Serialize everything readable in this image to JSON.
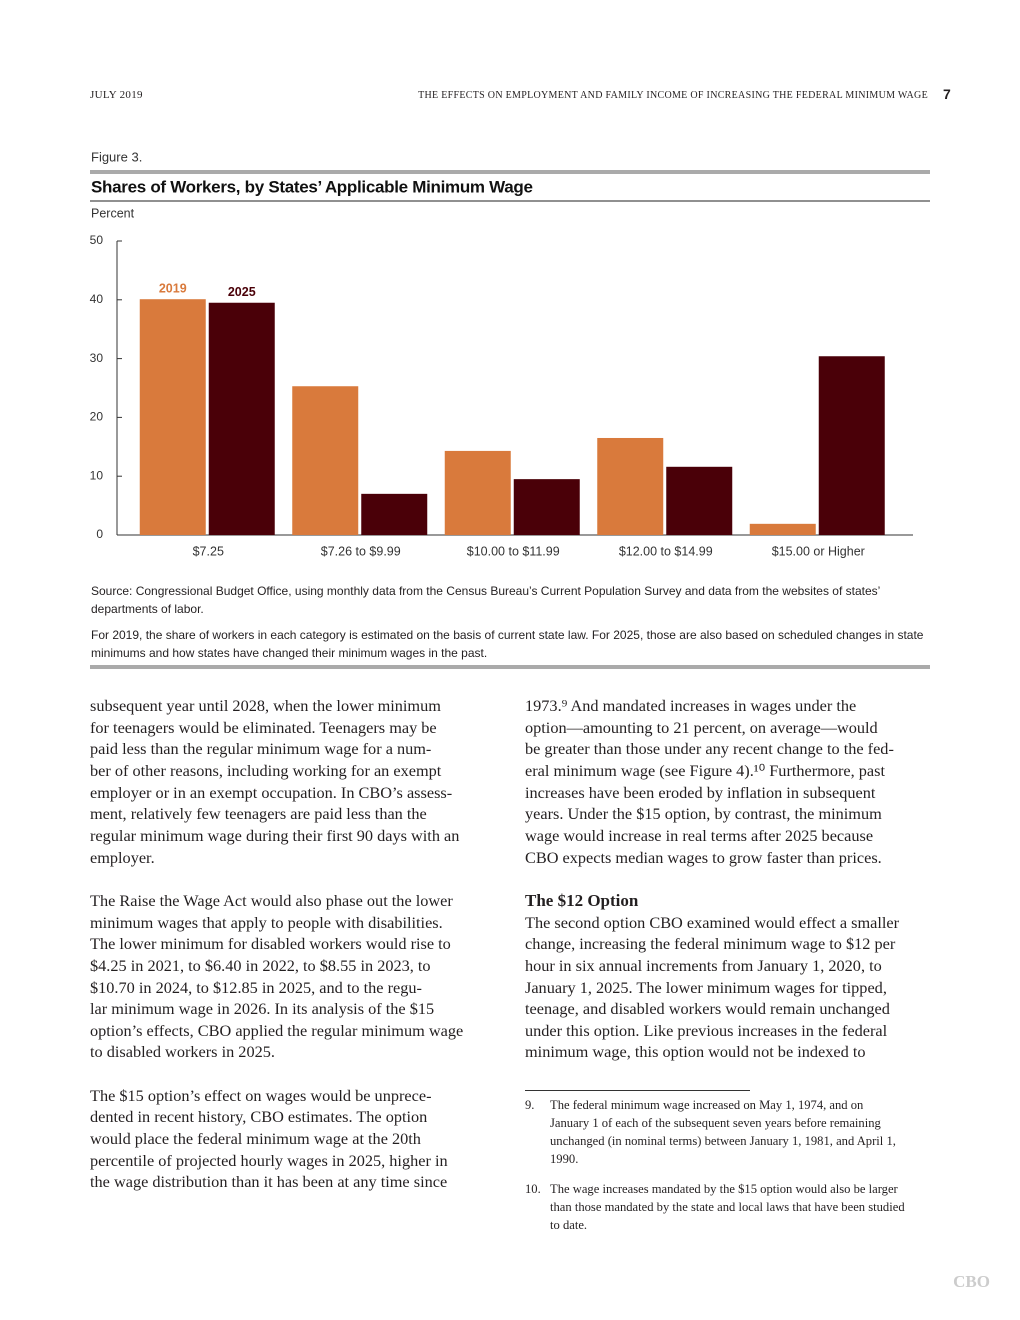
{
  "header": {
    "date": "JULY 2019",
    "title": "THE EFFECTS ON EMPLOYMENT AND FAMILY INCOME OF INCREASING THE FEDERAL MINIMUM WAGE",
    "page": "7"
  },
  "figure": {
    "label": "Figure 3.",
    "source": "Source: Congressional Budget Office, using monthly data from the Census Bureau’s Current Population Survey and data from the websites of states’ departments of labor.",
    "note": "For 2019, the share of workers in each category is estimated on the basis of current state law. For 2025, those are also based on scheduled changes in state minimums and how states have changed their minimum wages in the past."
  },
  "chart_data": {
    "type": "bar",
    "title": "Shares of Workers, by States’ Applicable Minimum Wage",
    "y_label": "Percent",
    "categories": [
      "$7.25",
      "$7.26 to $9.99",
      "$10.00 to $11.99",
      "$12.00 to $14.99",
      "$15.00 or Higher"
    ],
    "series": [
      {
        "name": "2019",
        "color": "#d97a3c",
        "values": [
          40.1,
          25.3,
          14.3,
          16.5,
          1.9
        ]
      },
      {
        "name": "2025",
        "color": "#4a0008",
        "values": [
          39.5,
          7.0,
          9.5,
          11.6,
          30.4
        ]
      }
    ],
    "ylim": [
      0,
      50
    ],
    "yticks": [
      0,
      10,
      20,
      30,
      40,
      50
    ],
    "grid": false
  },
  "body": {
    "left": [
      [
        "subsequent year until 2028, when the lower minimum",
        "for teenagers would be eliminated. Teenagers may be",
        "paid less than the regular minimum wage for a num-",
        "ber of other reasons, including working for an exempt",
        "employer or in an exempt occupation. In CBO’s assess-",
        "ment, relatively few teenagers are paid less than the",
        "regular minimum wage during their first 90 days with an",
        "employer."
      ],
      [
        "The Raise the Wage Act would also phase out the lower",
        "minimum wages that apply to people with disabilities.",
        "The lower minimum for disabled workers would rise to",
        "$4.25 in 2021, to $6.40 in 2022, to $8.55 in 2023, to",
        "$10.70 in 2024, to $12.85 in 2025, and to the regu-",
        "lar minimum wage in 2026. In its analysis of the $15",
        "option’s effects, CBO applied the regular minimum wage",
        "to disabled workers in 2025."
      ],
      [
        "The $15 option’s effect on wages would be unprece-",
        "dented in recent history, CBO estimates. The option",
        "would place the federal minimum wage at the 20th",
        "percentile of projected hourly wages in 2025, higher in",
        "the wage distribution than it has been at any time since"
      ]
    ],
    "right_top": [
      "1973.⁹ And mandated increases in wages under the",
      "option—amounting to 21 percent, on average—would",
      "be greater than those under any recent change to the fed-",
      "eral minimum wage (see Figure 4).¹⁰ Furthermore, past",
      "increases have been eroded by inflation in subsequent",
      "years. Under the $15 option, by contrast, the minimum",
      "wage would increase in real terms after 2025 because",
      "CBO expects median wages to grow faster than prices."
    ],
    "heading": "The $12 Option",
    "right_bottom": [
      "The second option CBO examined would effect a smaller",
      "change, increasing the federal minimum wage to $12 per",
      "hour in six annual increments from January 1, 2020, to",
      "January 1, 2025. The lower minimum wages for tipped,",
      "teenage, and disabled workers would remain unchanged",
      "under this option. Like previous increases in the federal",
      "minimum wage, this option would not be indexed to"
    ]
  },
  "footnotes": [
    {
      "number": "9.",
      "text": "The federal minimum wage increased on May 1, 1974, and on January 1 of each of the subsequent seven years before remaining unchanged (in nominal terms) between January 1, 1981, and April 1, 1990."
    },
    {
      "number": "10.",
      "text": "The wage increases mandated by the $15 option would also be larger than those mandated by the state and local laws that have been studied to date."
    }
  ],
  "footer": "CBO"
}
